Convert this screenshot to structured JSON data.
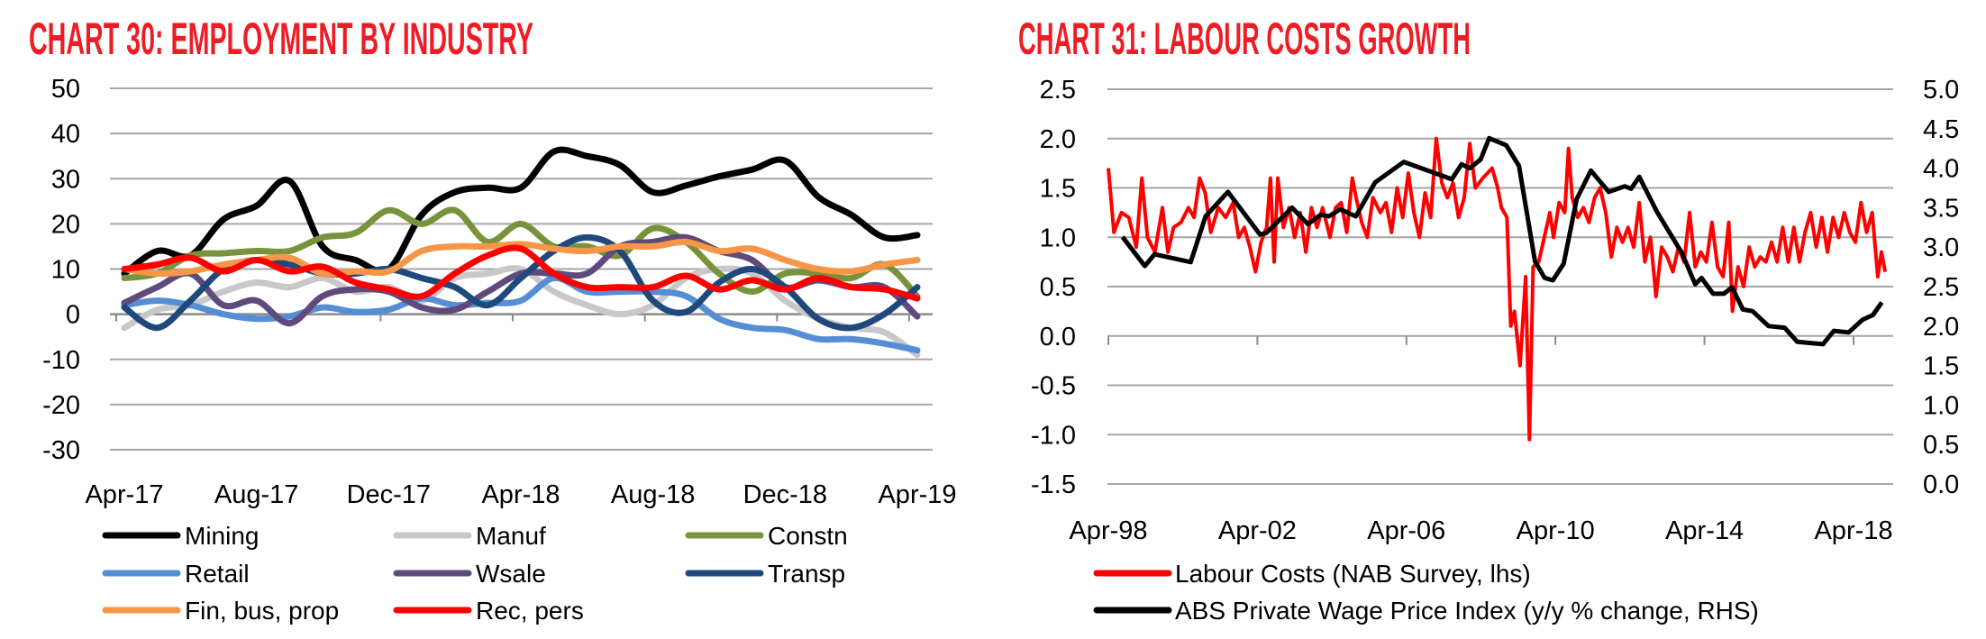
{
  "chart_data": [
    {
      "type": "line",
      "title": "CHART 30: EMPLOYMENT BY INDUSTRY",
      "xlabel": "",
      "ylabel": "",
      "ylim": [
        -30,
        50
      ],
      "yticks": [
        "50",
        "40",
        "30",
        "20",
        "10",
        "0",
        "-10",
        "-20",
        "-30"
      ],
      "ytick_values": [
        50,
        40,
        30,
        20,
        10,
        0,
        -10,
        -20,
        -30
      ],
      "x": [
        "Apr-17",
        "May-17",
        "Jun-17",
        "Jul-17",
        "Aug-17",
        "Sep-17",
        "Oct-17",
        "Nov-17",
        "Dec-17",
        "Jan-18",
        "Feb-18",
        "Mar-18",
        "Apr-18",
        "May-18",
        "Jun-18",
        "Jul-18",
        "Aug-18",
        "Sep-18",
        "Oct-18",
        "Nov-18",
        "Dec-18",
        "Jan-19",
        "Feb-19",
        "Mar-19",
        "Apr-19"
      ],
      "xtick_labels": [
        "Apr-17",
        "Aug-17",
        "Dec-17",
        "Apr-18",
        "Aug-18",
        "Dec-18",
        "Apr-19"
      ],
      "xtick_index": [
        0,
        4,
        8,
        12,
        16,
        20,
        24
      ],
      "grid": true,
      "legend_placement": "bottom",
      "series": [
        {
          "name": "Mining",
          "color": "#000000",
          "values": [
            9,
            14,
            13,
            21,
            24,
            29.5,
            15,
            12,
            10,
            22,
            27,
            28,
            28,
            36,
            35,
            33,
            27,
            28.5,
            30.5,
            32,
            34,
            26,
            22,
            17,
            17.5
          ]
        },
        {
          "name": "Manuf",
          "color": "#c8c8c8",
          "values": [
            -3,
            1,
            2,
            5,
            7,
            6,
            8,
            5,
            6,
            3,
            8,
            9,
            10,
            5,
            2,
            0,
            2,
            8,
            10,
            9,
            3,
            -1,
            -3,
            -4,
            -9
          ]
        },
        {
          "name": "Constn",
          "color": "#77933c",
          "values": [
            8,
            9,
            13,
            13.5,
            14,
            14,
            17,
            18,
            23,
            20,
            23,
            16,
            20,
            15,
            15,
            13,
            19,
            16,
            9,
            5,
            9,
            9,
            8,
            11,
            4
          ]
        },
        {
          "name": "Retail",
          "color": "#558ed5",
          "values": [
            2,
            3,
            2,
            0,
            -1,
            -0.5,
            1.5,
            0.5,
            1,
            3.5,
            2,
            2.5,
            3,
            8,
            5,
            5,
            5,
            4,
            -1,
            -3,
            -3.5,
            -5.5,
            -5.5,
            -6.5,
            -8
          ]
        },
        {
          "name": "Wsale",
          "color": "#604a7b",
          "values": [
            2.5,
            6,
            9,
            2,
            3,
            -2,
            4,
            5.5,
            5,
            1.5,
            1,
            5,
            9,
            9,
            9,
            15,
            16,
            17,
            14,
            12,
            6,
            7.5,
            6,
            6,
            -0.5
          ]
        },
        {
          "name": "Transp",
          "color": "#1f497d",
          "values": [
            1.5,
            -3,
            3,
            10,
            12,
            11,
            9,
            9,
            10,
            8,
            6,
            2,
            8,
            14,
            17,
            14,
            3,
            0.5,
            7,
            10,
            6,
            -1,
            -3,
            0,
            6
          ]
        },
        {
          "name": "Fin, bus, prop",
          "color": "#f79646",
          "values": [
            10,
            9,
            9.5,
            11,
            12,
            12.5,
            9,
            9.5,
            9.5,
            14,
            15,
            15,
            15.5,
            14.5,
            14,
            15,
            15,
            16,
            14,
            14.5,
            12,
            10,
            9.5,
            11,
            12
          ]
        },
        {
          "name": "Rec, pers",
          "color": "#ff0000",
          "values": [
            10,
            11,
            12.5,
            9.5,
            12,
            9.5,
            10.5,
            7,
            5.5,
            4,
            9,
            13,
            14.5,
            9,
            6,
            6,
            6,
            8.5,
            5.5,
            7.5,
            5.5,
            8,
            6,
            5.5,
            3.5
          ]
        }
      ]
    },
    {
      "type": "line",
      "title": "CHART 31: LABOUR COSTS GROWTH",
      "xlabel": "",
      "ylabel": "",
      "ylim": [
        -1.5,
        2.5
      ],
      "y2lim": [
        0.0,
        5.0
      ],
      "yticks": [
        "2.5",
        "2.0",
        "1.5",
        "1.0",
        "0.5",
        "0.0",
        "-0.5",
        "-1.0",
        "-1.5"
      ],
      "ytick_values": [
        2.5,
        2.0,
        1.5,
        1.0,
        0.5,
        0.0,
        -0.5,
        -1.0,
        -1.5
      ],
      "y2ticks": [
        "5.0",
        "4.5",
        "4.0",
        "3.5",
        "3.0",
        "2.5",
        "2.0",
        "1.5",
        "1.0",
        "0.5",
        "0.0"
      ],
      "y2tick_values": [
        5.0,
        4.5,
        4.0,
        3.5,
        3.0,
        2.5,
        2.0,
        1.5,
        1.0,
        0.5,
        0.0
      ],
      "xtick_labels": [
        "Apr-98",
        "Apr-02",
        "Apr-06",
        "Apr-10",
        "Apr-14",
        "Apr-18"
      ],
      "xtick_years": [
        1998.25,
        2002.25,
        2006.25,
        2010.25,
        2014.25,
        2018.25
      ],
      "grid": true,
      "legend_placement": "bottom",
      "series": [
        {
          "name": "Labour Costs (NAB Survey, lhs)",
          "axis": "left",
          "color": "#ff0000",
          "x": [
            1998.25,
            1998.4,
            1998.6,
            1998.8,
            1999.0,
            1999.15,
            1999.3,
            1999.5,
            1999.7,
            1999.85,
            2000.0,
            2000.2,
            2000.4,
            2000.55,
            2000.7,
            2000.85,
            2001.0,
            2001.2,
            2001.4,
            2001.6,
            2001.75,
            2001.9,
            2002.05,
            2002.2,
            2002.35,
            2002.5,
            2002.6,
            2002.7,
            2002.8,
            2002.95,
            2003.1,
            2003.25,
            2003.4,
            2003.55,
            2003.7,
            2003.85,
            2004.0,
            2004.2,
            2004.35,
            2004.5,
            2004.65,
            2004.8,
            2004.9,
            2005.05,
            2005.2,
            2005.35,
            2005.55,
            2005.7,
            2005.85,
            2006.0,
            2006.15,
            2006.3,
            2006.45,
            2006.6,
            2006.75,
            2006.9,
            2007.05,
            2007.2,
            2007.35,
            2007.5,
            2007.65,
            2007.8,
            2007.95,
            2008.1,
            2008.3,
            2008.55,
            2008.7,
            2008.8,
            2008.95,
            2009.05,
            2009.15,
            2009.3,
            2009.45,
            2009.55,
            2009.65,
            2009.8,
            2009.95,
            2010.1,
            2010.2,
            2010.35,
            2010.5,
            2010.6,
            2010.7,
            2010.85,
            2011.0,
            2011.15,
            2011.3,
            2011.45,
            2011.6,
            2011.75,
            2011.9,
            2012.05,
            2012.2,
            2012.35,
            2012.5,
            2012.65,
            2012.8,
            2012.95,
            2013.1,
            2013.25,
            2013.4,
            2013.55,
            2013.7,
            2013.85,
            2014.0,
            2014.15,
            2014.3,
            2014.45,
            2014.6,
            2014.75,
            2014.9,
            2015.0,
            2015.15,
            2015.3,
            2015.45,
            2015.6,
            2015.75,
            2015.9,
            2016.05,
            2016.2,
            2016.35,
            2016.5,
            2016.65,
            2016.8,
            2016.95,
            2017.1,
            2017.25,
            2017.4,
            2017.55,
            2017.7,
            2017.85,
            2018.0,
            2018.15,
            2018.3,
            2018.45,
            2018.6,
            2018.75,
            2018.9,
            2019.0,
            2019.1
          ],
          "values": [
            1.7,
            1.05,
            1.25,
            1.2,
            0.9,
            1.6,
            1.0,
            0.85,
            1.3,
            0.85,
            1.1,
            1.15,
            1.3,
            1.2,
            1.6,
            1.45,
            1.05,
            1.3,
            1.2,
            1.35,
            1.0,
            1.1,
            0.9,
            0.65,
            0.95,
            1.1,
            1.6,
            0.75,
            1.6,
            1.1,
            1.3,
            1.0,
            1.25,
            0.85,
            1.3,
            1.1,
            1.3,
            1.0,
            1.3,
            1.35,
            1.05,
            1.6,
            1.4,
            1.15,
            1.0,
            1.4,
            1.25,
            1.35,
            1.05,
            1.5,
            1.2,
            1.65,
            1.25,
            1.0,
            1.45,
            1.2,
            2.0,
            1.55,
            1.4,
            1.55,
            1.2,
            1.4,
            1.95,
            1.5,
            1.6,
            1.7,
            1.5,
            1.3,
            1.2,
            0.1,
            0.25,
            -0.3,
            0.6,
            -1.05,
            0.7,
            0.75,
            1.0,
            1.25,
            1.0,
            1.35,
            1.25,
            1.9,
            1.4,
            1.2,
            1.3,
            1.15,
            1.4,
            1.5,
            1.25,
            0.8,
            1.1,
            0.95,
            1.1,
            0.9,
            1.35,
            0.75,
            1.0,
            0.4,
            0.9,
            0.8,
            0.65,
            0.9,
            0.75,
            1.25,
            0.7,
            0.85,
            0.75,
            1.15,
            0.7,
            0.6,
            1.15,
            0.25,
            0.7,
            0.5,
            0.9,
            0.7,
            0.8,
            0.75,
            0.95,
            0.75,
            1.1,
            0.75,
            1.1,
            0.75,
            1.05,
            1.25,
            0.9,
            1.2,
            0.85,
            1.2,
            1.0,
            1.25,
            1.05,
            0.95,
            1.35,
            1.05,
            1.25,
            0.6,
            0.85,
            0.65
          ]
        },
        {
          "name": "ABS Private Wage Price Index (y/y % change, RHS)",
          "axis": "right",
          "color": "#000000",
          "x": [
            1998.63,
            1999.23,
            1999.49,
            2000.46,
            2000.86,
            2001.46,
            2002.32,
            2002.49,
            2003.18,
            2003.61,
            2003.95,
            2004.17,
            2004.47,
            2004.89,
            2005.41,
            2006.18,
            2007.47,
            2007.73,
            2007.95,
            2008.24,
            2008.47,
            2008.93,
            2009.27,
            2009.7,
            2009.96,
            2010.18,
            2010.47,
            2010.82,
            2011.2,
            2011.68,
            2012.11,
            2012.28,
            2012.5,
            2012.97,
            2013.65,
            2014.0,
            2014.17,
            2014.48,
            2014.77,
            2014.99,
            2015.28,
            2015.54,
            2015.97,
            2016.4,
            2016.74,
            2017.43,
            2017.72,
            2018.12,
            2018.49,
            2018.77,
            2019.01
          ],
          "values": [
            3.13,
            2.76,
            2.91,
            2.81,
            3.39,
            3.7,
            3.16,
            3.18,
            3.5,
            3.29,
            3.41,
            3.39,
            3.48,
            3.39,
            3.82,
            4.08,
            3.86,
            4.05,
            4.0,
            4.11,
            4.38,
            4.29,
            4.03,
            2.82,
            2.61,
            2.58,
            2.79,
            3.61,
            3.97,
            3.7,
            3.77,
            3.74,
            3.89,
            3.45,
            2.92,
            2.53,
            2.61,
            2.41,
            2.41,
            2.49,
            2.21,
            2.19,
            2.0,
            1.98,
            1.8,
            1.77,
            1.94,
            1.92,
            2.08,
            2.14,
            2.3
          ]
        }
      ]
    }
  ]
}
